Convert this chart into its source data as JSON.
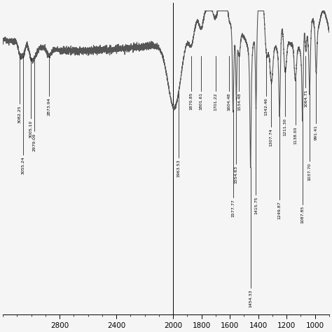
{
  "background_color": "#f5f5f5",
  "line_color": "#555555",
  "line_width": 0.8,
  "xlim": [
    3200,
    900
  ],
  "xticks": [
    2800,
    2400,
    2000,
    1800,
    1600,
    1400,
    1200,
    1000
  ],
  "annotations": [
    {
      "x": 3055.24,
      "label": "3055.24",
      "depth": 0.62
    },
    {
      "x": 3082.25,
      "label": "3082.25",
      "depth": 0.3
    },
    {
      "x": 3005.1,
      "label": "3005.10",
      "depth": 0.38
    },
    {
      "x": 2979.09,
      "label": "2979.09",
      "depth": 0.44
    },
    {
      "x": 2873.94,
      "label": "2873.94",
      "depth": 0.25
    },
    {
      "x": 1963.53,
      "label": "1963.53",
      "depth": 0.4
    },
    {
      "x": 1870.85,
      "label": "1870.85",
      "depth": 0.22
    },
    {
      "x": 1801.61,
      "label": "1801.61",
      "depth": 0.22
    },
    {
      "x": 1701.22,
      "label": "1701.22",
      "depth": 0.22
    },
    {
      "x": 1604.48,
      "label": "1604.48",
      "depth": 0.22
    },
    {
      "x": 1577.77,
      "label": "1577.77",
      "depth": 0.55
    },
    {
      "x": 1554.63,
      "label": "1554.63",
      "depth": 0.42
    },
    {
      "x": 1534.48,
      "label": "1534.48",
      "depth": 0.22
    },
    {
      "x": 1454.33,
      "label": "1454.33",
      "depth": 0.75
    },
    {
      "x": 1415.75,
      "label": "1415.75",
      "depth": 0.55
    },
    {
      "x": 1342.46,
      "label": "1342.46",
      "depth": 0.25
    },
    {
      "x": 1307.74,
      "label": "1307.74",
      "depth": 0.28
    },
    {
      "x": 1249.87,
      "label": "1249.87",
      "depth": 0.52
    },
    {
      "x": 1211.3,
      "label": "1211.30",
      "depth": 0.3
    },
    {
      "x": 1138.0,
      "label": "1138.00",
      "depth": 0.28
    },
    {
      "x": 1087.85,
      "label": "1087.85",
      "depth": 0.52
    },
    {
      "x": 1064.71,
      "label": "1064.71",
      "depth": 0.2
    },
    {
      "x": 1037.7,
      "label": "1037.70",
      "depth": 0.42
    },
    {
      "x": 991.41,
      "label": "991.41",
      "depth": 0.32
    }
  ]
}
